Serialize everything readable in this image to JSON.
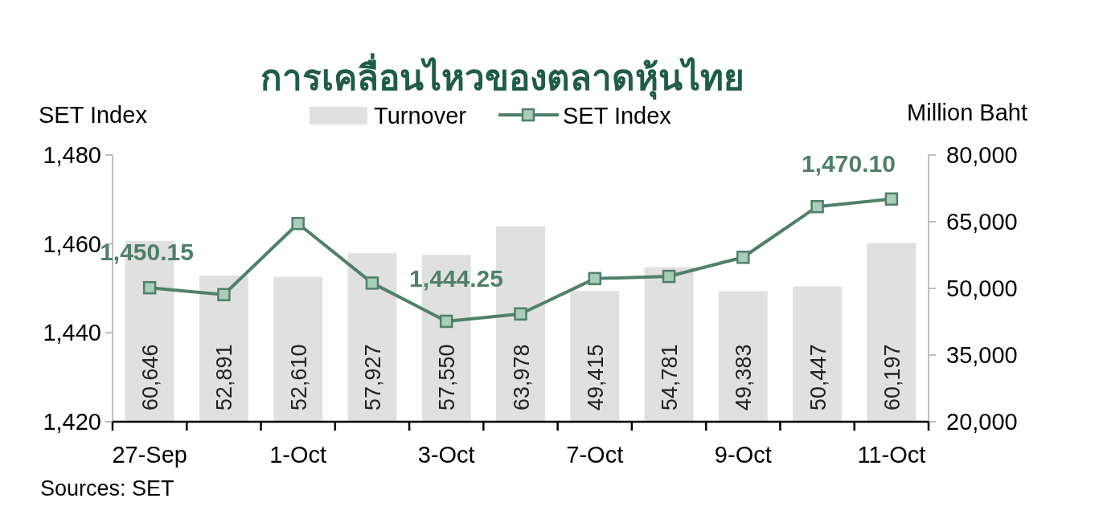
{
  "chart_data": {
    "type": "line",
    "title": "การเคลื่อนไหวของตลาดหุ้นไทย",
    "ylabel": "SET Index",
    "y2label": "Million Baht",
    "annotations": [
      "Sources: SET"
    ],
    "categories": [
      "27-Sep",
      null,
      "1-Oct",
      null,
      "3-Oct",
      null,
      "7-Oct",
      null,
      "9-Oct",
      null,
      "11-Oct"
    ],
    "series": [
      {
        "name": "Turnover",
        "type": "bar",
        "axis": "y2",
        "color": "#e0e0e0",
        "values": [
          60646,
          52891,
          52610,
          57927,
          57550,
          63978,
          49415,
          54781,
          49383,
          50447,
          60197
        ],
        "value_labels": [
          "60,646",
          "52,891",
          "52,610",
          "57,927",
          "57,550",
          "63,978",
          "49,415",
          "54,781",
          "49,383",
          "50,447",
          "60,197"
        ]
      },
      {
        "name": "SET Index",
        "axis": "y",
        "color": "#4f806a",
        "marker": "square",
        "values": [
          1450.15,
          1448.6,
          1464.6,
          1451.2,
          1442.6,
          1444.25,
          1452.2,
          1452.7,
          1457.0,
          1468.4,
          1470.1
        ],
        "value_labels": [
          "1,450.15",
          null,
          null,
          null,
          null,
          "1,444.25",
          null,
          null,
          null,
          null,
          "1,470.10"
        ]
      }
    ],
    "ylim": [
      1420,
      1480
    ],
    "yticks": [
      {
        "value": 1420,
        "label": "1,420"
      },
      {
        "value": 1440,
        "label": "1,440"
      },
      {
        "value": 1460,
        "label": "1,460"
      },
      {
        "value": 1480,
        "label": "1,480"
      }
    ],
    "y2lim": [
      20000,
      80000
    ],
    "y2ticks": [
      {
        "value": 20000,
        "label": "20,000"
      },
      {
        "value": 35000,
        "label": "35,000"
      },
      {
        "value": 50000,
        "label": "50,000"
      },
      {
        "value": 65000,
        "label": "65,000"
      },
      {
        "value": 80000,
        "label": "80,000"
      }
    ],
    "legend": "top"
  }
}
